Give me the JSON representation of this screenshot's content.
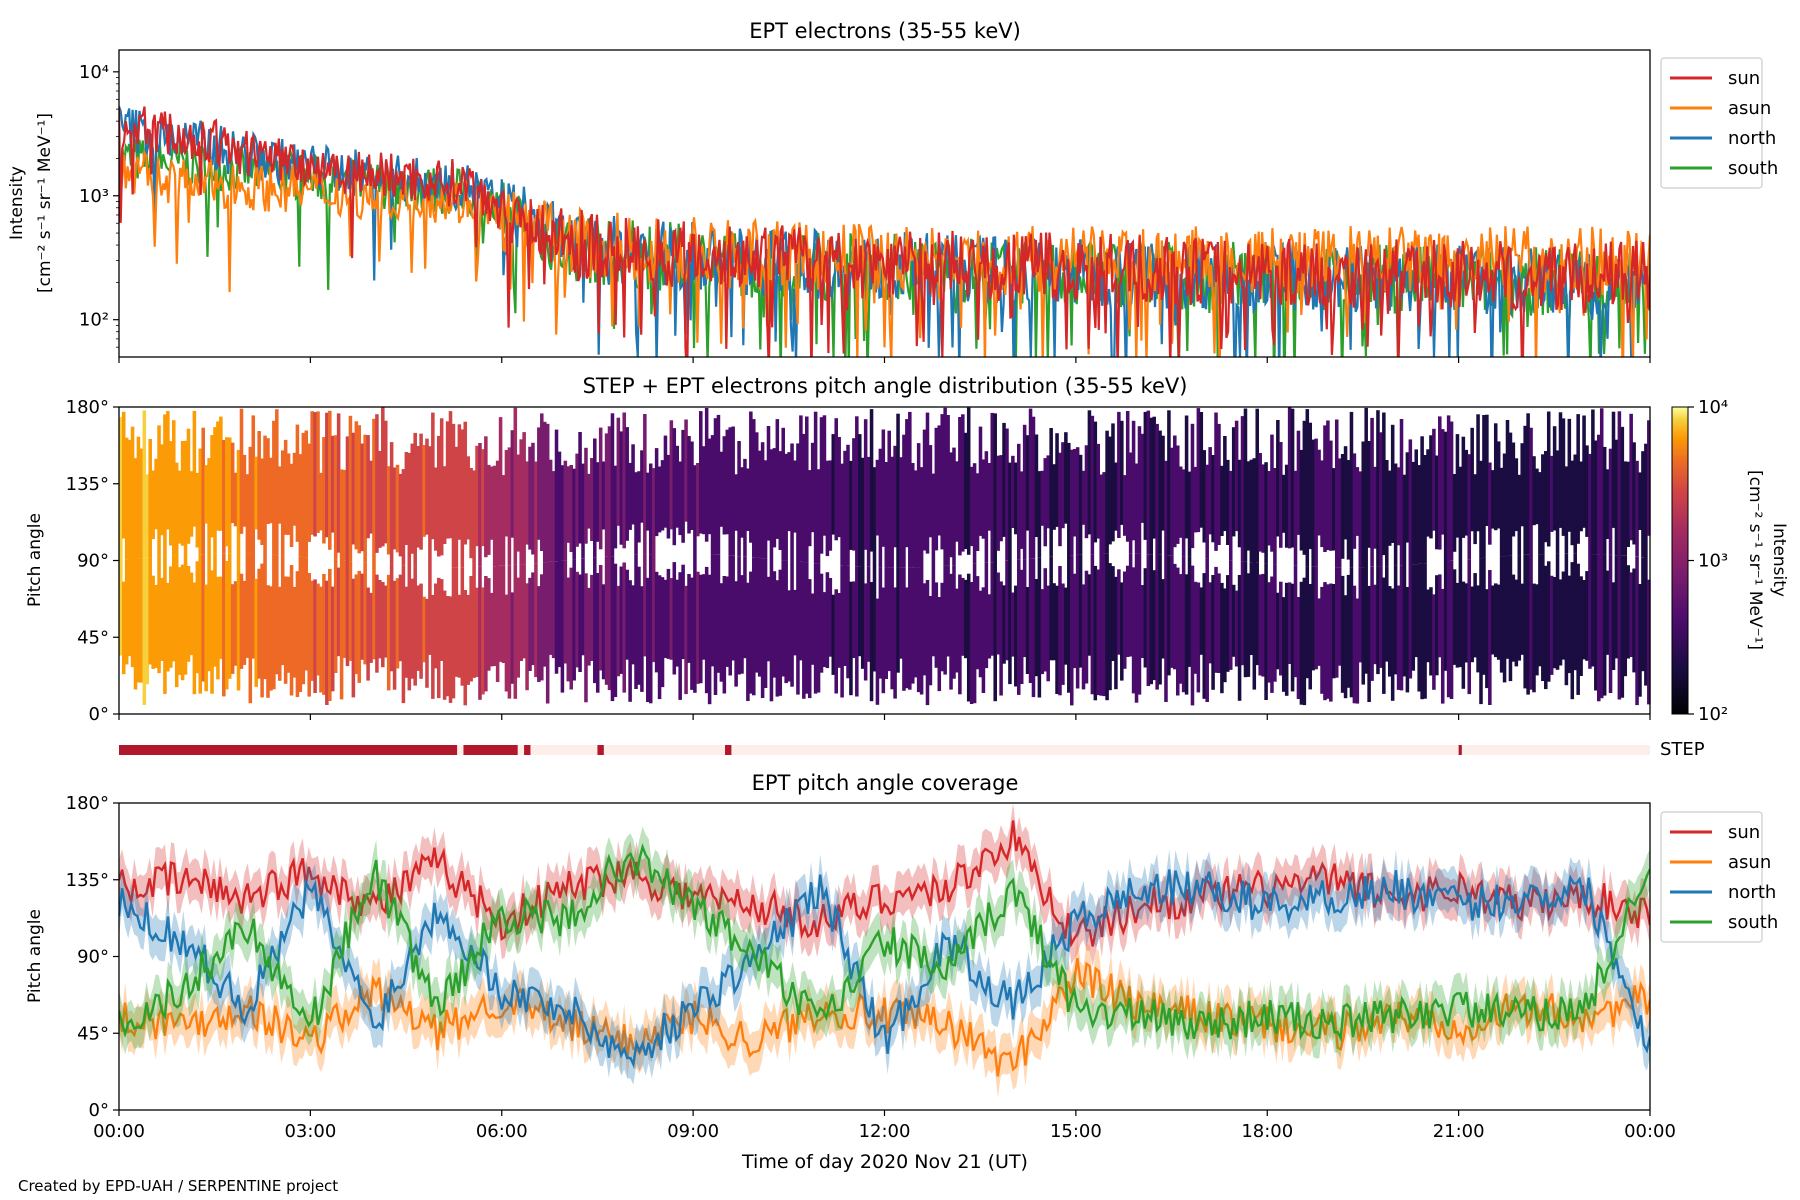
{
  "figure": {
    "credit": "Created by EPD-UAH / SERPENTINE project",
    "xlabel": "Time of day 2020 Nov 21 (UT)",
    "x_ticks": [
      "00:00",
      "03:00",
      "06:00",
      "09:00",
      "12:00",
      "15:00",
      "18:00",
      "21:00",
      "00:00"
    ],
    "x_range_hours": [
      0,
      24
    ]
  },
  "chart_data": [
    {
      "type": "line",
      "title": "EPT electrons (35-55 keV)",
      "ylabel": "Intensity",
      "ylabel_unit": "[cm⁻² s⁻¹ sr⁻¹ MeV⁻¹]",
      "yscale": "log",
      "ylim": [
        50,
        15000
      ],
      "y_ticks": [
        "10²",
        "10³",
        "10⁴"
      ],
      "y_tick_values": [
        100,
        1000,
        10000
      ],
      "legend_placement": "outside-right",
      "x": [
        0,
        1,
        2,
        3,
        4,
        5,
        5.5,
        6,
        7,
        8,
        9,
        10,
        11,
        12,
        13,
        14,
        15,
        16,
        17,
        18,
        19,
        20,
        21,
        22,
        23,
        24
      ],
      "series": [
        {
          "name": "sun",
          "color": "#d62728",
          "values": [
            3800,
            3000,
            2200,
            1800,
            1500,
            1300,
            1250,
            800,
            420,
            370,
            340,
            320,
            300,
            290,
            280,
            270,
            260,
            255,
            250,
            245,
            240,
            235,
            230,
            225,
            220,
            230
          ]
        },
        {
          "name": "asun",
          "color": "#ff7f0e",
          "values": [
            1500,
            1300,
            1200,
            1100,
            1000,
            950,
            900,
            650,
            420,
            380,
            350,
            330,
            320,
            310,
            300,
            300,
            295,
            300,
            300,
            300,
            300,
            300,
            300,
            300,
            300,
            300
          ]
        },
        {
          "name": "north",
          "color": "#1f77b4",
          "values": [
            3600,
            2800,
            2100,
            1700,
            1450,
            1250,
            1200,
            780,
            400,
            350,
            320,
            300,
            280,
            270,
            260,
            250,
            240,
            235,
            230,
            225,
            220,
            215,
            210,
            205,
            200,
            210
          ]
        },
        {
          "name": "south",
          "color": "#2ca02c",
          "values": [
            2000,
            1800,
            1600,
            1400,
            1250,
            1100,
            1050,
            700,
            380,
            340,
            310,
            290,
            275,
            265,
            255,
            245,
            240,
            235,
            230,
            225,
            220,
            215,
            210,
            205,
            200,
            205
          ]
        }
      ]
    },
    {
      "type": "heatmap",
      "title": "STEP + EPT electrons pitch angle distribution (35-55 keV)",
      "ylabel": "Pitch angle",
      "ylim": [
        0,
        180
      ],
      "y_ticks": [
        "0°",
        "45°",
        "90°",
        "135°",
        "180°"
      ],
      "y_tick_values": [
        0,
        45,
        90,
        135,
        180
      ],
      "colorbar": {
        "label": "Intensity",
        "unit": "[cm⁻² s⁻¹ sr⁻¹ MeV⁻¹]",
        "scale": "log",
        "range": [
          100,
          10000
        ],
        "ticks": [
          "10²",
          "10³",
          "10⁴"
        ],
        "colormap": "inferno"
      }
    },
    {
      "type": "bar",
      "label": "STEP",
      "description_axis": "availability",
      "active_color": "#b2182b",
      "inactive_color": "#fdeeea",
      "active_intervals_hours": [
        [
          0,
          5.3
        ],
        [
          5.4,
          6.25
        ],
        [
          6.35,
          6.45
        ],
        [
          7.5,
          7.6
        ],
        [
          9.5,
          9.6
        ],
        [
          21.0,
          21.05
        ]
      ]
    },
    {
      "type": "line",
      "title": "EPT pitch angle coverage",
      "ylabel": "Pitch angle",
      "ylim": [
        0,
        180
      ],
      "y_ticks": [
        "0°",
        "45°",
        "90°",
        "135°",
        "180°"
      ],
      "y_tick_values": [
        0,
        45,
        90,
        135,
        180
      ],
      "legend_placement": "outside-right",
      "x": [
        0,
        1,
        2,
        3,
        4,
        5,
        6,
        7,
        8,
        9,
        10,
        11,
        12,
        13,
        14,
        15,
        16,
        17,
        18,
        19,
        20,
        21,
        22,
        23,
        24
      ],
      "series": [
        {
          "name": "sun",
          "color": "#d62728",
          "values": [
            130,
            135,
            125,
            140,
            120,
            145,
            110,
            130,
            140,
            125,
            120,
            110,
            125,
            130,
            160,
            100,
            120,
            125,
            130,
            135,
            125,
            130,
            120,
            125,
            115
          ]
        },
        {
          "name": "asun",
          "color": "#ff7f0e",
          "values": [
            55,
            50,
            60,
            40,
            70,
            45,
            65,
            50,
            40,
            55,
            40,
            60,
            55,
            50,
            25,
            80,
            60,
            55,
            50,
            45,
            55,
            50,
            60,
            55,
            65
          ]
        },
        {
          "name": "north",
          "color": "#1f77b4",
          "values": [
            120,
            100,
            60,
            130,
            50,
            120,
            70,
            60,
            30,
            60,
            90,
            130,
            40,
            100,
            60,
            110,
            130,
            130,
            120,
            125,
            130,
            120,
            125,
            130,
            40
          ]
        },
        {
          "name": "south",
          "color": "#2ca02c",
          "values": [
            50,
            70,
            110,
            50,
            140,
            60,
            115,
            110,
            150,
            120,
            90,
            50,
            100,
            80,
            130,
            60,
            55,
            50,
            55,
            50,
            55,
            60,
            55,
            60,
            140
          ]
        }
      ]
    }
  ]
}
